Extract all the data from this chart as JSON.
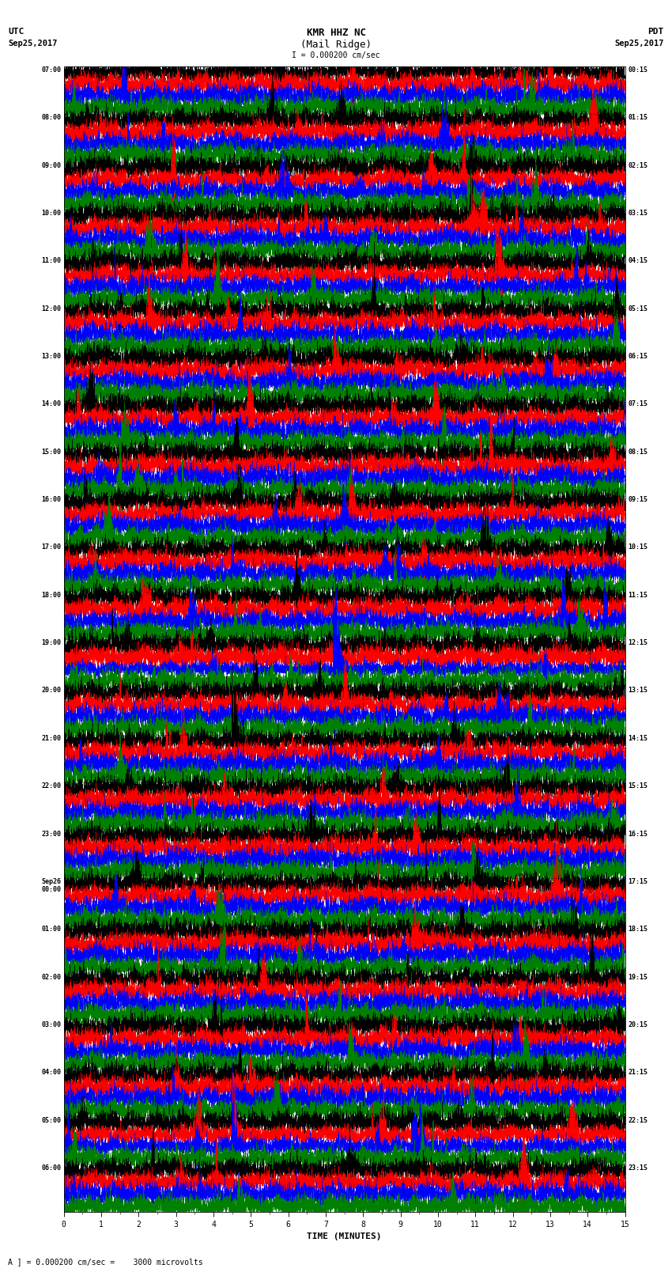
{
  "title_line1": "KMR HHZ NC",
  "title_line2": "(Mail Ridge)",
  "scale_text": "I = 0.000200 cm/sec",
  "bottom_text": "A ] = 0.000200 cm/sec =    3000 microvolts",
  "xlabel": "TIME (MINUTES)",
  "utc_times": [
    "07:00",
    "08:00",
    "09:00",
    "10:00",
    "11:00",
    "12:00",
    "13:00",
    "14:00",
    "15:00",
    "16:00",
    "17:00",
    "18:00",
    "19:00",
    "20:00",
    "21:00",
    "22:00",
    "23:00",
    "Sep26\n00:00",
    "01:00",
    "02:00",
    "03:00",
    "04:00",
    "05:00",
    "06:00"
  ],
  "pdt_times": [
    "00:15",
    "01:15",
    "02:15",
    "03:15",
    "04:15",
    "05:15",
    "06:15",
    "07:15",
    "08:15",
    "09:15",
    "10:15",
    "11:15",
    "12:15",
    "13:15",
    "14:15",
    "15:15",
    "16:15",
    "17:15",
    "18:15",
    "19:15",
    "20:15",
    "21:15",
    "22:15",
    "23:15"
  ],
  "trace_colors": [
    "black",
    "red",
    "blue",
    "green"
  ],
  "num_rows": 24,
  "traces_per_row": 4,
  "minutes": 15,
  "sample_rate": 10,
  "fig_width": 8.5,
  "fig_height": 16.13,
  "bg_color": "white",
  "amplitude_scale": 0.12,
  "earthquake_row": 12,
  "earthquake_trace": 2,
  "earthquake_minute": 7.2,
  "eq2_row": 14,
  "eq2_trace": 0,
  "eq2_minute": 4.5,
  "eq3_row": 22,
  "eq3_trace": 1,
  "eq3_minute": 4.5,
  "eq4_row": 22,
  "eq4_trace": 2,
  "eq4_minute": 4.5
}
